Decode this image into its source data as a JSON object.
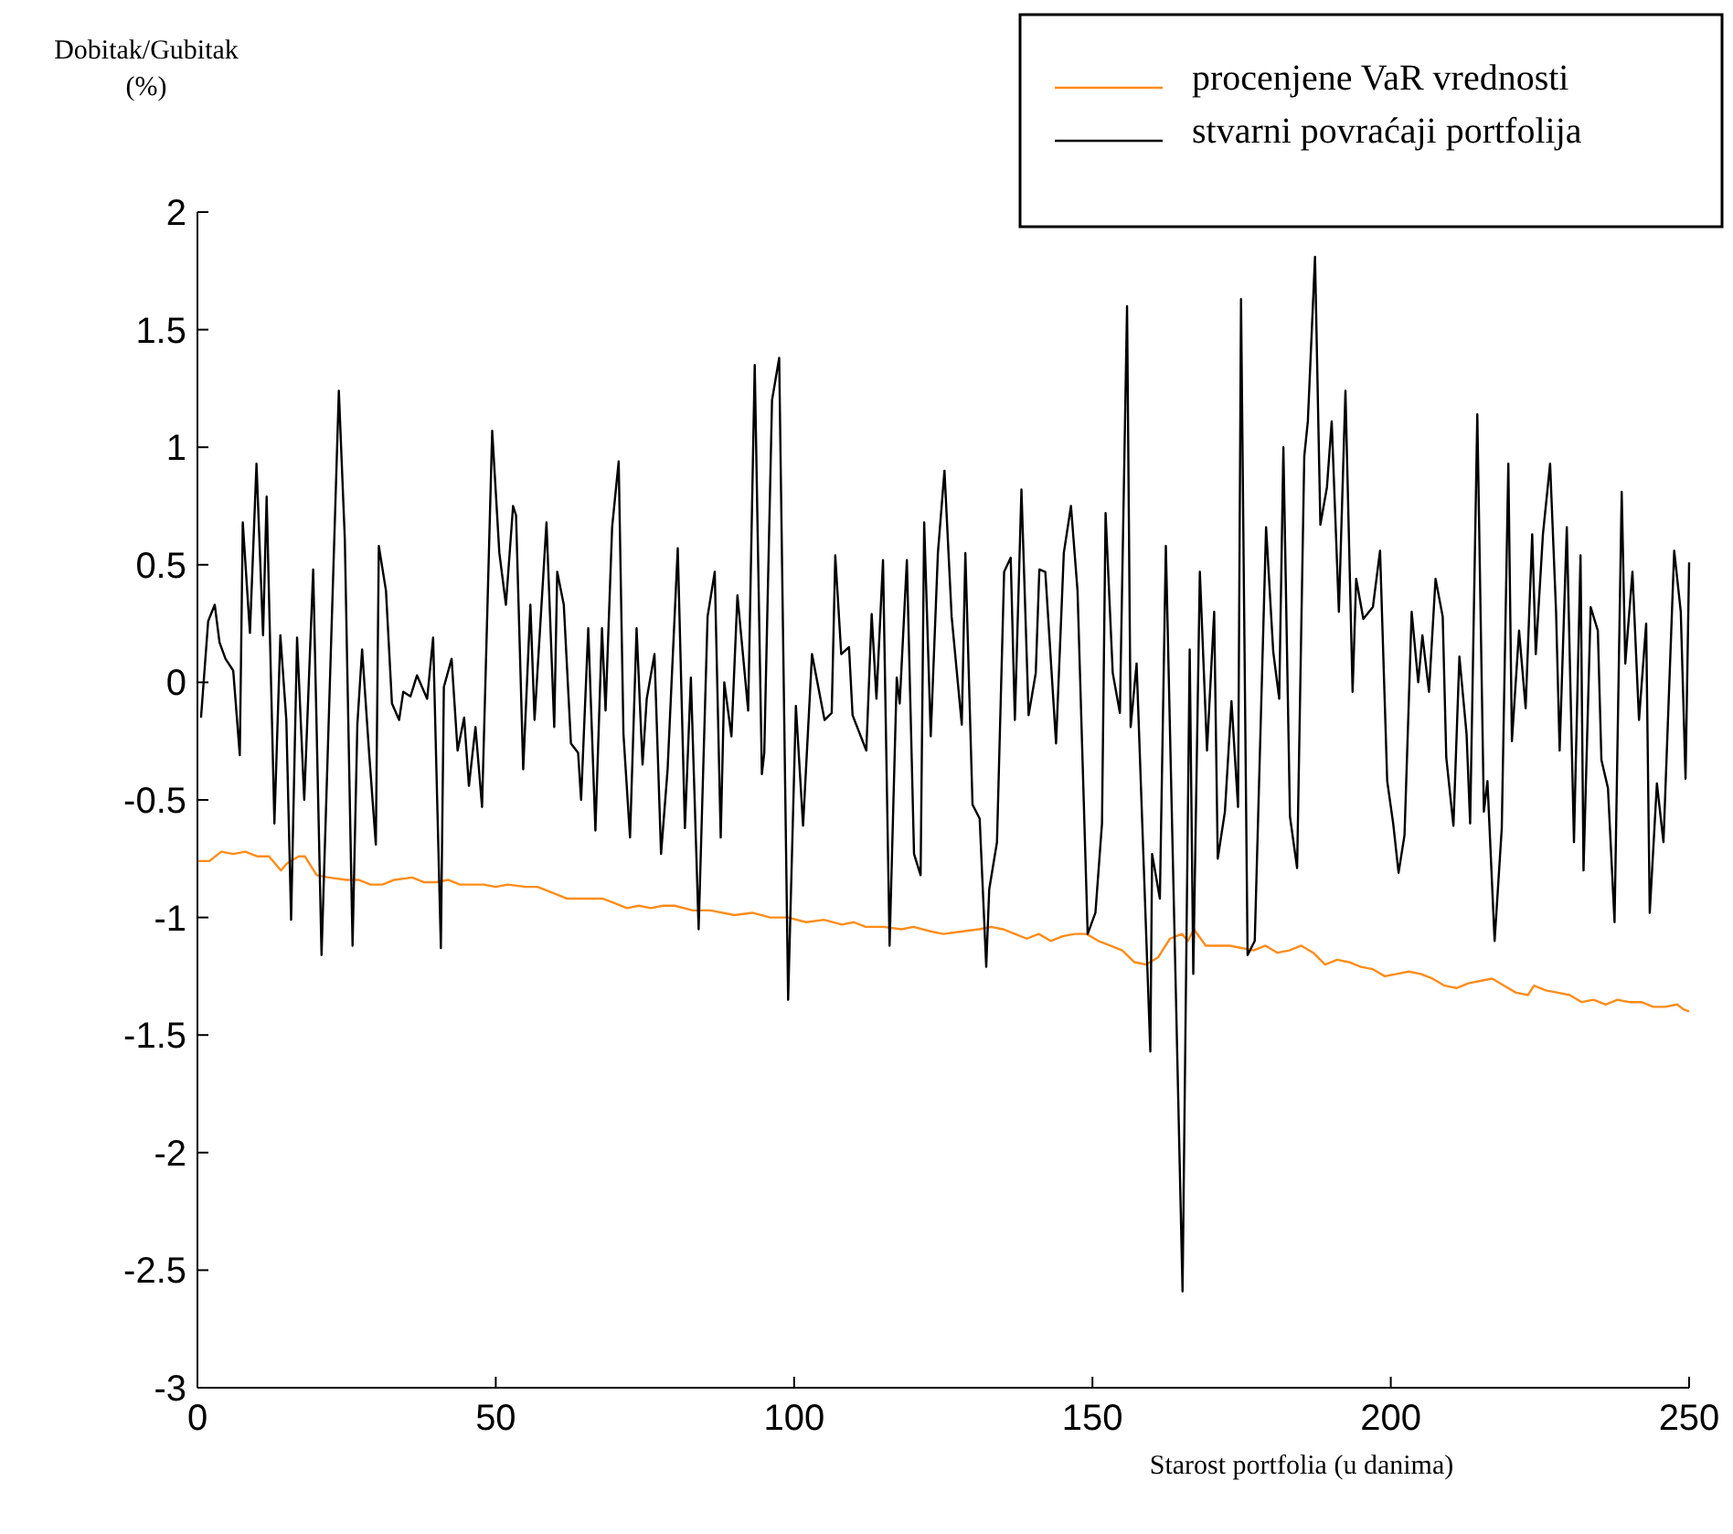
{
  "chart_data": {
    "type": "line",
    "xlabel": "Starost portfolia (u danima)",
    "ylabel": "Dobitak/Gubitak (%)",
    "xlim": [
      0,
      250
    ],
    "xticks": [
      0,
      50,
      100,
      150,
      200,
      250
    ],
    "ylim": [
      -3,
      2
    ],
    "yticks": [
      -3,
      -2.5,
      -2,
      -1.5,
      -1,
      -0.5,
      0,
      0.5,
      1,
      1.5,
      2
    ],
    "grid": false,
    "legend": "top right",
    "marker": "none",
    "line_style": "solid",
    "series": [
      {
        "name": "procenjene VaR vrednosti",
        "color": "#ff8c1a",
        "x": [
          0,
          2,
          4,
          6,
          8,
          10,
          12,
          14,
          15,
          17,
          18,
          20,
          22,
          25,
          27,
          29,
          31,
          33,
          36,
          38,
          40,
          42,
          44,
          46,
          48,
          50,
          52,
          55,
          57,
          60,
          62,
          66,
          68,
          70,
          72,
          74,
          76,
          78,
          80,
          83,
          86,
          90,
          93,
          96,
          99,
          102,
          105,
          108,
          110,
          112,
          115,
          118,
          120,
          123,
          125,
          128,
          131,
          133,
          135,
          137,
          139,
          141,
          143,
          145,
          147,
          149,
          151,
          153,
          155,
          157,
          159,
          161,
          163,
          165,
          166,
          167,
          169,
          171,
          173,
          175,
          177,
          179,
          181,
          183,
          185,
          187,
          189,
          191,
          193,
          195,
          197,
          199,
          201,
          203,
          205,
          207,
          209,
          211,
          213,
          215,
          217,
          219,
          221,
          223,
          224,
          226,
          228,
          230,
          232,
          234,
          236,
          238,
          240,
          242,
          244,
          246,
          248,
          249,
          250
        ],
        "values": [
          -0.76,
          -0.76,
          -0.72,
          -0.73,
          -0.72,
          -0.74,
          -0.74,
          -0.8,
          -0.77,
          -0.74,
          -0.74,
          -0.82,
          -0.83,
          -0.84,
          -0.84,
          -0.86,
          -0.86,
          -0.84,
          -0.83,
          -0.85,
          -0.85,
          -0.84,
          -0.86,
          -0.86,
          -0.86,
          -0.87,
          -0.86,
          -0.87,
          -0.87,
          -0.9,
          -0.92,
          -0.92,
          -0.92,
          -0.94,
          -0.96,
          -0.95,
          -0.96,
          -0.95,
          -0.95,
          -0.97,
          -0.97,
          -0.99,
          -0.98,
          -1.0,
          -1.0,
          -1.02,
          -1.01,
          -1.03,
          -1.02,
          -1.04,
          -1.04,
          -1.05,
          -1.04,
          -1.06,
          -1.07,
          -1.06,
          -1.05,
          -1.04,
          -1.05,
          -1.07,
          -1.09,
          -1.07,
          -1.1,
          -1.08,
          -1.07,
          -1.07,
          -1.1,
          -1.12,
          -1.14,
          -1.19,
          -1.2,
          -1.17,
          -1.09,
          -1.07,
          -1.1,
          -1.05,
          -1.12,
          -1.12,
          -1.12,
          -1.13,
          -1.14,
          -1.12,
          -1.15,
          -1.14,
          -1.12,
          -1.15,
          -1.2,
          -1.18,
          -1.19,
          -1.21,
          -1.22,
          -1.25,
          -1.24,
          -1.23,
          -1.24,
          -1.26,
          -1.29,
          -1.3,
          -1.28,
          -1.27,
          -1.26,
          -1.29,
          -1.32,
          -1.33,
          -1.29,
          -1.31,
          -1.32,
          -1.33,
          -1.36,
          -1.35,
          -1.37,
          -1.35,
          -1.36,
          -1.36,
          -1.38,
          -1.38,
          -1.37,
          -1.39,
          -1.4
        ]
      },
      {
        "name": "stvarni povraćaji portfolija",
        "color": "#000000",
        "x": [
          0.6,
          1.8,
          2.9,
          3.7,
          4.7,
          6.0,
          7.1,
          7.6,
          8.8,
          9.9,
          11.0,
          11.6,
          12.9,
          13.9,
          14.9,
          15.7,
          16.7,
          17.9,
          19.4,
          20.8,
          23.7,
          24.7,
          26.0,
          26.8,
          27.6,
          28.8,
          29.9,
          30.4,
          31.6,
          32.6,
          33.8,
          34.5,
          35.7,
          36.8,
          38.5,
          39.5,
          40.8,
          41.3,
          42.6,
          43.6,
          44.7,
          45.5,
          46.6,
          47.7,
          49.4,
          50.6,
          51.7,
          52.9,
          53.4,
          54.6,
          55.8,
          56.5,
          58.5,
          59.8,
          60.3,
          61.4,
          62.6,
          63.8,
          64.3,
          65.5,
          66.7,
          67.8,
          68.4,
          69.5,
          70.6,
          71.4,
          72.5,
          73.6,
          74.6,
          75.3,
          76.6,
          77.7,
          78.8,
          79.5,
          80.5,
          81.7,
          82.7,
          84.0,
          85.5,
          86.7,
          87.7,
          88.3,
          89.5,
          90.5,
          92.3,
          93.4,
          94.6,
          95.0,
          96.3,
          97.5,
          99.0,
          100.3,
          101.5,
          103.0,
          105.1,
          106.3,
          106.9,
          107.9,
          109.2,
          109.8,
          112.1,
          113.0,
          113.8,
          114.9,
          116.0,
          117.2,
          117.7,
          118.9,
          120.1,
          121.2,
          121.8,
          122.9,
          124.1,
          125.2,
          126.4,
          128.1,
          128.7,
          129.9,
          131.1,
          132.2,
          132.7,
          134.0,
          135.2,
          136.3,
          137.0,
          138.1,
          139.3,
          140.5,
          141.1,
          142.1,
          143.9,
          145.2,
          146.4,
          147.5,
          149.2,
          150.5,
          151.6,
          152.2,
          153.4,
          154.6,
          155.8,
          156.4,
          157.4,
          159.7,
          160.0,
          161.3,
          162.3,
          165.1,
          166.3,
          166.9,
          168.0,
          169.2,
          170.4,
          171.0,
          172.2,
          173.3,
          174.4,
          174.9,
          176.0,
          177.2,
          179.1,
          180.3,
          181.3,
          182.0,
          183.1,
          184.3,
          185.5,
          186.1,
          187.3,
          188.2,
          189.3,
          190.1,
          191.3,
          192.4,
          193.6,
          194.2,
          195.4,
          197.0,
          198.2,
          199.4,
          200.4,
          201.3,
          202.3,
          203.5,
          204.6,
          205.3,
          206.4,
          207.5,
          208.7,
          209.3,
          210.5,
          211.5,
          212.7,
          213.3,
          214.5,
          215.6,
          216.2,
          217.4,
          218.6,
          219.7,
          220.3,
          221.5,
          222.6,
          223.7,
          224.3,
          225.5,
          226.7,
          227.7,
          228.3,
          229.5,
          230.7,
          231.8,
          232.3,
          233.5,
          234.7,
          235.3,
          236.4,
          237.5,
          238.7,
          239.3,
          240.5,
          241.6,
          242.8,
          243.4,
          244.6,
          245.7,
          247.5,
          248.6,
          249.4,
          250
        ],
        "values": [
          -0.15,
          0.26,
          0.33,
          0.17,
          0.1,
          0.05,
          -0.31,
          0.68,
          0.21,
          0.93,
          0.2,
          0.79,
          -0.6,
          0.2,
          -0.16,
          -1.01,
          0.19,
          -0.5,
          0.48,
          -1.16,
          1.24,
          0.61,
          -1.12,
          -0.18,
          0.14,
          -0.31,
          -0.69,
          0.58,
          0.39,
          -0.09,
          -0.16,
          -0.04,
          -0.06,
          0.03,
          -0.07,
          0.19,
          -1.13,
          -0.02,
          0.1,
          -0.29,
          -0.15,
          -0.44,
          -0.19,
          -0.53,
          1.07,
          0.55,
          0.33,
          0.75,
          0.71,
          -0.37,
          0.33,
          -0.16,
          0.68,
          -0.19,
          0.47,
          0.33,
          -0.26,
          -0.3,
          -0.5,
          0.23,
          -0.63,
          0.23,
          -0.12,
          0.66,
          0.94,
          -0.22,
          -0.66,
          0.23,
          -0.35,
          -0.07,
          0.12,
          -0.73,
          -0.37,
          0.02,
          0.57,
          -0.62,
          0.02,
          -1.05,
          0.28,
          0.47,
          -0.66,
          0.0,
          -0.23,
          0.37,
          -0.12,
          1.35,
          -0.39,
          -0.3,
          1.2,
          1.38,
          -1.35,
          -0.1,
          -0.61,
          0.12,
          -0.16,
          -0.13,
          0.54,
          0.12,
          0.15,
          -0.14,
          -0.29,
          0.29,
          -0.07,
          0.52,
          -1.12,
          0.02,
          -0.09,
          0.52,
          -0.73,
          -0.82,
          0.68,
          -0.23,
          0.55,
          0.9,
          0.28,
          -0.18,
          0.55,
          -0.52,
          -0.58,
          -1.21,
          -0.88,
          -0.68,
          0.47,
          0.53,
          -0.16,
          0.82,
          -0.14,
          0.04,
          0.48,
          0.47,
          -0.26,
          0.55,
          0.75,
          0.39,
          -1.07,
          -0.98,
          -0.6,
          0.72,
          0.04,
          -0.13,
          1.6,
          -0.19,
          0.08,
          -1.57,
          -0.73,
          -0.92,
          0.58,
          -2.59,
          0.14,
          -1.24,
          0.47,
          -0.29,
          0.3,
          -0.75,
          -0.55,
          -0.08,
          -0.53,
          1.63,
          -1.16,
          -1.1,
          0.66,
          0.13,
          -0.07,
          1.0,
          -0.57,
          -0.79,
          0.96,
          1.11,
          1.81,
          0.67,
          0.83,
          1.11,
          0.3,
          1.24,
          -0.04,
          0.44,
          0.27,
          0.32,
          0.56,
          -0.42,
          -0.6,
          -0.81,
          -0.65,
          0.3,
          0.0,
          0.2,
          -0.04,
          0.44,
          0.28,
          -0.32,
          -0.61,
          0.11,
          -0.22,
          -0.6,
          1.14,
          -0.55,
          -0.42,
          -1.1,
          -0.62,
          0.93,
          -0.25,
          0.22,
          -0.11,
          0.63,
          0.12,
          0.63,
          0.93,
          0.3,
          -0.29,
          0.66,
          -0.68,
          0.54,
          -0.8,
          0.32,
          0.22,
          -0.33,
          -0.45,
          -1.02,
          0.81,
          0.08,
          0.47,
          -0.16,
          0.25,
          -0.98,
          -0.43,
          -0.68,
          0.56,
          0.3,
          -0.41,
          0.51
        ]
      }
    ]
  }
}
